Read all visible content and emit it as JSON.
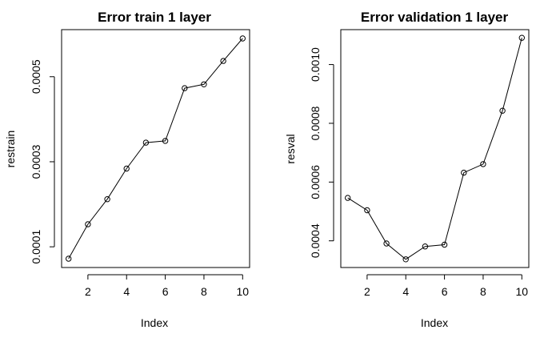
{
  "chart_data": [
    {
      "type": "line",
      "title": "Error train 1 layer",
      "xlabel": "Index",
      "ylabel": "restrain",
      "x": [
        1,
        2,
        3,
        4,
        5,
        6,
        7,
        8,
        9,
        10
      ],
      "values": [
        7.2e-05,
        0.000153,
        0.000212,
        0.000284,
        0.000345,
        0.000349,
        0.000473,
        0.000482,
        0.000537,
        0.00059
      ],
      "xlim": [
        0.64,
        10.36
      ],
      "ylim": [
        5.13e-05,
        0.0006107
      ],
      "xticks": [
        2,
        4,
        6,
        8,
        10
      ],
      "yticks": [
        0.0001,
        0.0003,
        0.0005
      ],
      "xtick_labels": [
        "2",
        "4",
        "6",
        "8",
        "10"
      ],
      "ytick_labels": [
        "0.0001",
        "0.0003",
        "0.0005"
      ],
      "grid": false,
      "markers": "open-circle"
    },
    {
      "type": "line",
      "title": "Error validation 1 layer",
      "xlabel": "Index",
      "ylabel": "resval",
      "x": [
        1,
        2,
        3,
        4,
        5,
        6,
        7,
        8,
        9,
        10
      ],
      "values": [
        0.000546,
        0.000504,
        0.000391,
        0.000337,
        0.000381,
        0.000387,
        0.000632,
        0.000661,
        0.000843,
        0.001091
      ],
      "xlim": [
        0.64,
        10.36
      ],
      "ylim": [
        0.0003092,
        0.0011188
      ],
      "xticks": [
        2,
        4,
        6,
        8,
        10
      ],
      "yticks": [
        0.0004,
        0.0006,
        0.0008,
        0.001
      ],
      "xtick_labels": [
        "2",
        "4",
        "6",
        "8",
        "10"
      ],
      "ytick_labels": [
        "0.0004",
        "0.0006",
        "0.0008",
        "0.0010"
      ],
      "grid": false,
      "markers": "open-circle"
    }
  ]
}
